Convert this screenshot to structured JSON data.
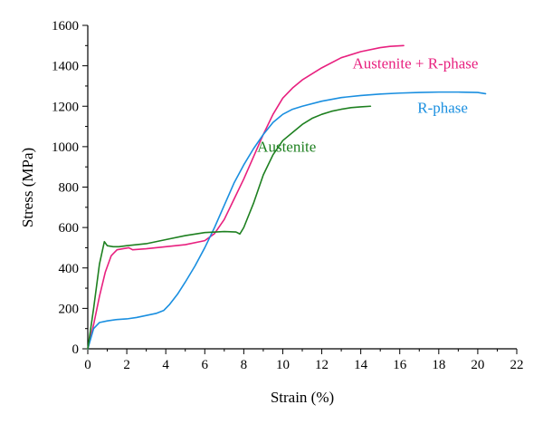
{
  "chart_data": {
    "type": "line",
    "title": "",
    "xlabel": "Strain (%)",
    "ylabel": "Stress (MPa)",
    "xlim": [
      0,
      22
    ],
    "ylim": [
      0,
      1600
    ],
    "xticks": [
      0,
      2,
      4,
      6,
      8,
      10,
      12,
      14,
      16,
      18,
      20,
      22
    ],
    "yticks": [
      0,
      200,
      400,
      600,
      800,
      1000,
      1200,
      1400,
      1600
    ],
    "xtick_labels": [
      "0",
      "2",
      "4",
      "6",
      "8",
      "10",
      "12",
      "14",
      "16",
      "18",
      "20",
      "22"
    ],
    "ytick_labels": [
      "0",
      "200",
      "400",
      "600",
      "800",
      "1000",
      "1200",
      "1400",
      "1600"
    ],
    "grid": false,
    "legend": "none",
    "series": [
      {
        "name": "Austenite + R-phase",
        "color": "#e8207f",
        "points": [
          [
            0,
            0
          ],
          [
            0.3,
            120
          ],
          [
            0.6,
            260
          ],
          [
            0.9,
            380
          ],
          [
            1.2,
            460
          ],
          [
            1.5,
            490
          ],
          [
            1.8,
            495
          ],
          [
            2.1,
            500
          ],
          [
            2.3,
            490
          ],
          [
            3,
            495
          ],
          [
            4,
            505
          ],
          [
            5,
            515
          ],
          [
            6,
            535
          ],
          [
            6.5,
            570
          ],
          [
            7,
            640
          ],
          [
            7.5,
            740
          ],
          [
            8,
            840
          ],
          [
            8.5,
            950
          ],
          [
            9,
            1060
          ],
          [
            9.5,
            1160
          ],
          [
            10,
            1240
          ],
          [
            10.5,
            1290
          ],
          [
            11,
            1330
          ],
          [
            12,
            1390
          ],
          [
            13,
            1440
          ],
          [
            14,
            1470
          ],
          [
            15,
            1490
          ],
          [
            15.5,
            1496
          ],
          [
            16.2,
            1500
          ]
        ]
      },
      {
        "name": "R-phase",
        "color": "#1a8fe0",
        "points": [
          [
            0,
            0
          ],
          [
            0.3,
            100
          ],
          [
            0.6,
            130
          ],
          [
            1,
            138
          ],
          [
            1.5,
            145
          ],
          [
            2,
            148
          ],
          [
            2.5,
            155
          ],
          [
            3,
            165
          ],
          [
            3.5,
            175
          ],
          [
            3.9,
            190
          ],
          [
            4.2,
            220
          ],
          [
            4.6,
            270
          ],
          [
            5,
            330
          ],
          [
            5.5,
            410
          ],
          [
            6,
            500
          ],
          [
            6.5,
            600
          ],
          [
            7,
            710
          ],
          [
            7.5,
            820
          ],
          [
            8,
            910
          ],
          [
            8.5,
            990
          ],
          [
            9,
            1060
          ],
          [
            9.5,
            1120
          ],
          [
            10,
            1160
          ],
          [
            10.5,
            1185
          ],
          [
            11,
            1200
          ],
          [
            12,
            1225
          ],
          [
            13,
            1243
          ],
          [
            14,
            1253
          ],
          [
            15,
            1260
          ],
          [
            16,
            1265
          ],
          [
            17,
            1268
          ],
          [
            18,
            1270
          ],
          [
            19,
            1270
          ],
          [
            20,
            1268
          ],
          [
            20.4,
            1262
          ]
        ]
      },
      {
        "name": "Austenite",
        "color": "#1e8020",
        "points": [
          [
            0,
            0
          ],
          [
            0.3,
            200
          ],
          [
            0.6,
            420
          ],
          [
            0.85,
            530
          ],
          [
            1.0,
            510
          ],
          [
            1.3,
            505
          ],
          [
            1.6,
            505
          ],
          [
            2,
            510
          ],
          [
            3,
            520
          ],
          [
            4,
            540
          ],
          [
            5,
            560
          ],
          [
            6,
            575
          ],
          [
            7,
            580
          ],
          [
            7.6,
            578
          ],
          [
            7.8,
            568
          ],
          [
            8,
            600
          ],
          [
            8.5,
            720
          ],
          [
            9,
            860
          ],
          [
            9.5,
            960
          ],
          [
            10,
            1030
          ],
          [
            10.5,
            1070
          ],
          [
            11,
            1110
          ],
          [
            11.5,
            1140
          ],
          [
            12,
            1160
          ],
          [
            12.5,
            1175
          ],
          [
            13,
            1185
          ],
          [
            13.5,
            1193
          ],
          [
            14,
            1197
          ],
          [
            14.5,
            1200
          ]
        ]
      }
    ],
    "annotations": [
      {
        "text": "Austenite + R-phase",
        "color": "#e8207f",
        "x": 16.8,
        "y": 1388
      },
      {
        "text": "R-phase",
        "color": "#1a8fe0",
        "x": 18.2,
        "y": 1168
      },
      {
        "text": "Austenite",
        "color": "#1e8020",
        "x": 10.2,
        "y": 975
      }
    ]
  }
}
